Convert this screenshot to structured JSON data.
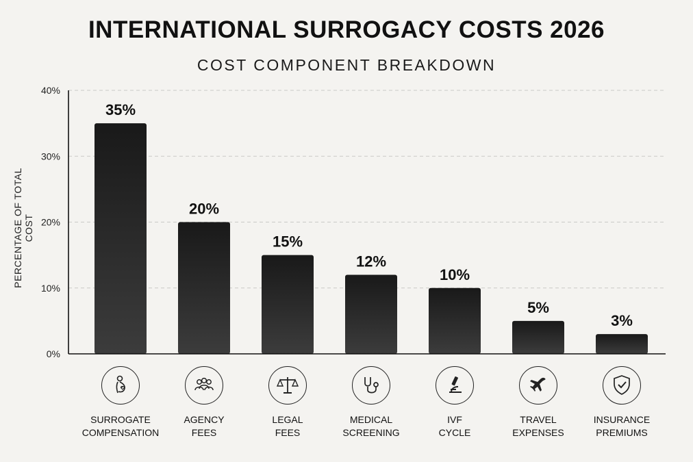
{
  "title": "INTERNATIONAL SURROGACY COSTS 2026",
  "subtitle": "COST COMPONENT BREAKDOWN",
  "chart_data": {
    "type": "bar",
    "title": "INTERNATIONAL SURROGACY COSTS 2026",
    "subtitle": "COST COMPONENT BREAKDOWN",
    "ylabel": "PERCENTAGE OF TOTAL COST",
    "xlabel": "",
    "ylim": [
      0,
      40
    ],
    "yticks": [
      0,
      10,
      20,
      30,
      40
    ],
    "ytick_labels": [
      "0%",
      "10%",
      "20%",
      "30%",
      "40%"
    ],
    "grid": true,
    "categories": [
      [
        "SURROGATE",
        "COMPENSATION"
      ],
      [
        "AGENCY",
        "FEES"
      ],
      [
        "LEGAL",
        "FEES"
      ],
      [
        "MEDICAL",
        "SCREENING"
      ],
      [
        "IVF",
        "CYCLE"
      ],
      [
        "TRAVEL",
        "EXPENSES"
      ],
      [
        "INSURANCE",
        "PREMIUMS"
      ]
    ],
    "values": [
      35,
      20,
      15,
      12,
      10,
      5,
      3
    ],
    "data_labels": [
      "35%",
      "20%",
      "15%",
      "12%",
      "10%",
      "5%",
      "3%"
    ],
    "icons": [
      "pregnant-person-icon",
      "group-icon",
      "scales-icon",
      "stethoscope-icon",
      "microscope-icon",
      "airplane-icon",
      "shield-check-icon"
    ],
    "bar_color": "#1c1c1c"
  }
}
